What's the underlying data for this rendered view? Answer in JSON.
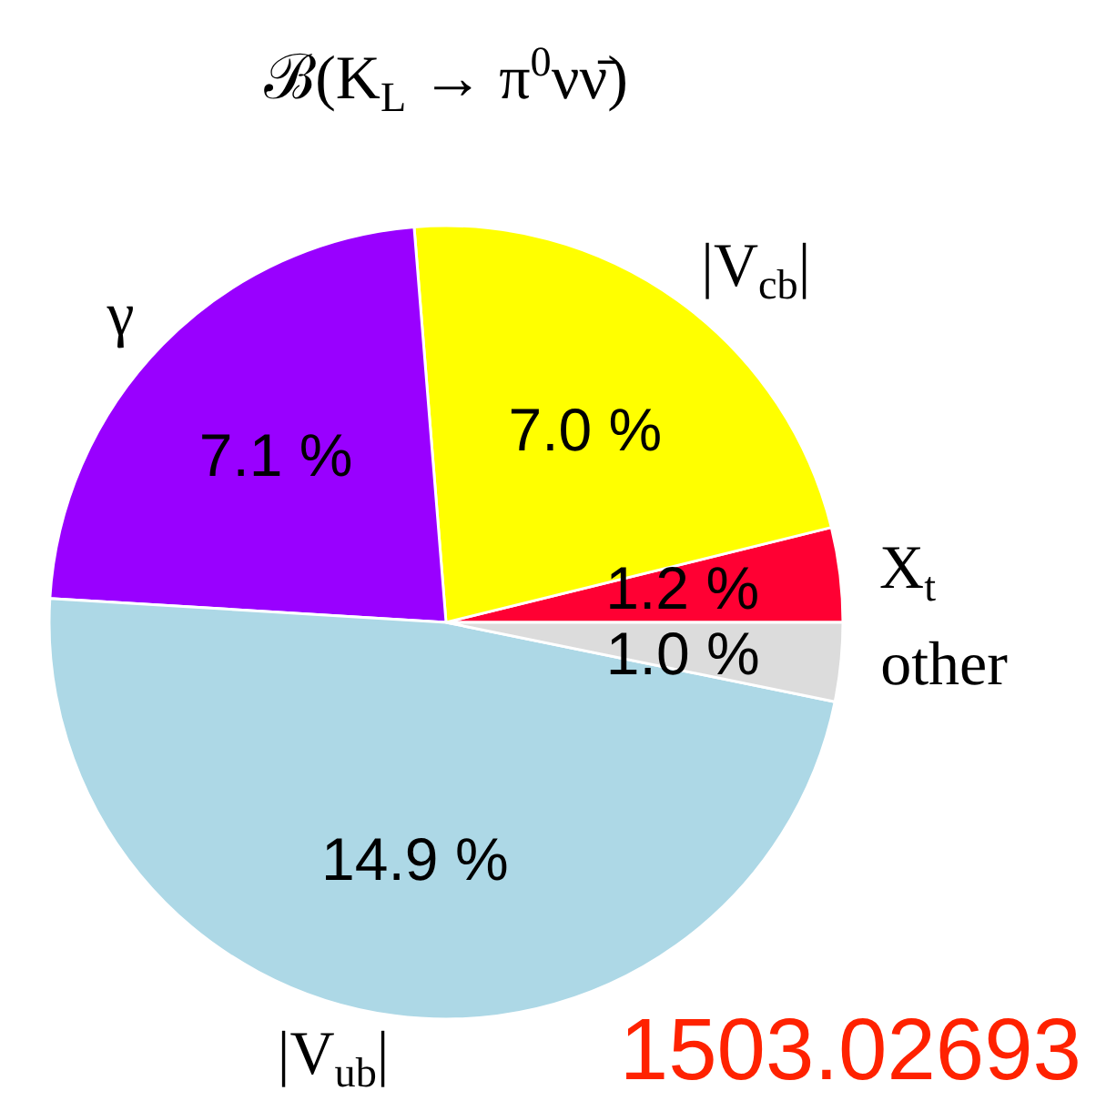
{
  "chart_data": {
    "type": "pie",
    "title": "ℬ(K$_{L}$ → π$^{0}$νν̄)",
    "categories": [
      "X$_{t}$",
      "|V$_{cb}$|",
      "γ",
      "|V$_{ub}$|",
      "other"
    ],
    "values": [
      1.2,
      7.0,
      7.1,
      14.9,
      1.0
    ],
    "colors": [
      "#ff0033",
      "#ffff00",
      "#9900ff",
      "#add8e6",
      "#dcdcdc"
    ],
    "value_labels": [
      "1.2 %",
      "7.0 %",
      "7.1 %",
      "14.9 %",
      "1.0 %"
    ],
    "annotations": [
      "1503.02693"
    ]
  }
}
